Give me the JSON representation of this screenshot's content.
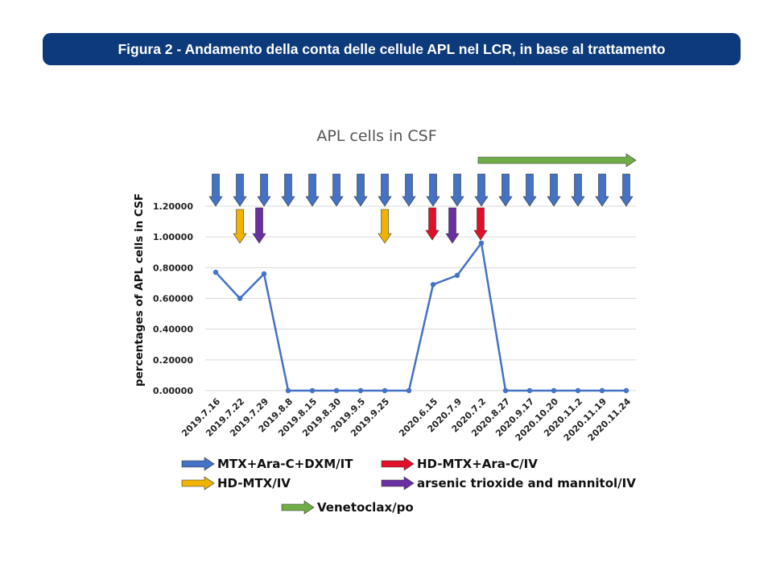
{
  "header": {
    "title": "Figura 2 - Andamento della conta delle cellule APL nel LCR, in base al trattamento"
  },
  "colors": {
    "banner": "#0d3a7a",
    "line": "#4472c4",
    "blue_arrow": "#4472c4",
    "yellow_arrow": "#f0b400",
    "red_arrow": "#e0102a",
    "purple_arrow": "#6a2fa0",
    "green_arrow": "#70ad47",
    "grid": "#d9d9d9"
  },
  "chart_data": {
    "type": "line",
    "title": "APL cells in CSF",
    "ylabel": "percentages of APL cells in CSF",
    "xlabel": "",
    "ylim": [
      0,
      1.2
    ],
    "yticks": [
      "0.00000",
      "0.20000",
      "0.40000",
      "0.60000",
      "0.80000",
      "1.00000",
      "1.20000"
    ],
    "grid": true,
    "categories": [
      "2019.7.16",
      "2019.7.22",
      "2019.7.29",
      "2019.8.8",
      "2019.8.15",
      "2019.8.30",
      "2019.9.5",
      "2019.9.25",
      "",
      "2020.6.15",
      "2020.7.9",
      "2020.7.2",
      "2020.8.27",
      "2020.9.17",
      "2020.10.20",
      "2020.11.2",
      "2020.11.19",
      "2020.11.24"
    ],
    "series": [
      {
        "values": [
          0.77,
          0.6,
          0.76,
          0,
          0,
          0,
          0,
          0,
          0,
          0.69,
          0.75,
          0.96,
          0,
          0,
          0,
          0,
          0,
          0
        ]
      }
    ],
    "treatment_arrows": {
      "MTX+Ara-C+DXM/IT": [
        0,
        1,
        2,
        3,
        4,
        5,
        6,
        7,
        8,
        9,
        10,
        11,
        12,
        13,
        14,
        15,
        16,
        17
      ],
      "HD-MTX/IV": [
        1,
        7
      ],
      "arsenic trioxide and mannitol/IV": [
        2,
        10
      ],
      "HD-MTX+Ara-C/IV": [
        9,
        11
      ],
      "Venetoclax/po": [
        11,
        17
      ]
    },
    "legend": [
      {
        "label": "MTX+Ara-C+DXM/IT",
        "color": "#4472c4"
      },
      {
        "label": "HD-MTX+Ara-C/IV",
        "color": "#e0102a"
      },
      {
        "label": "HD-MTX/IV",
        "color": "#f0b400"
      },
      {
        "label": "arsenic trioxide and mannitol/IV",
        "color": "#6a2fa0"
      },
      {
        "label": "Venetoclax/po",
        "color": "#70ad47"
      }
    ],
    "legend_position": "bottom"
  }
}
